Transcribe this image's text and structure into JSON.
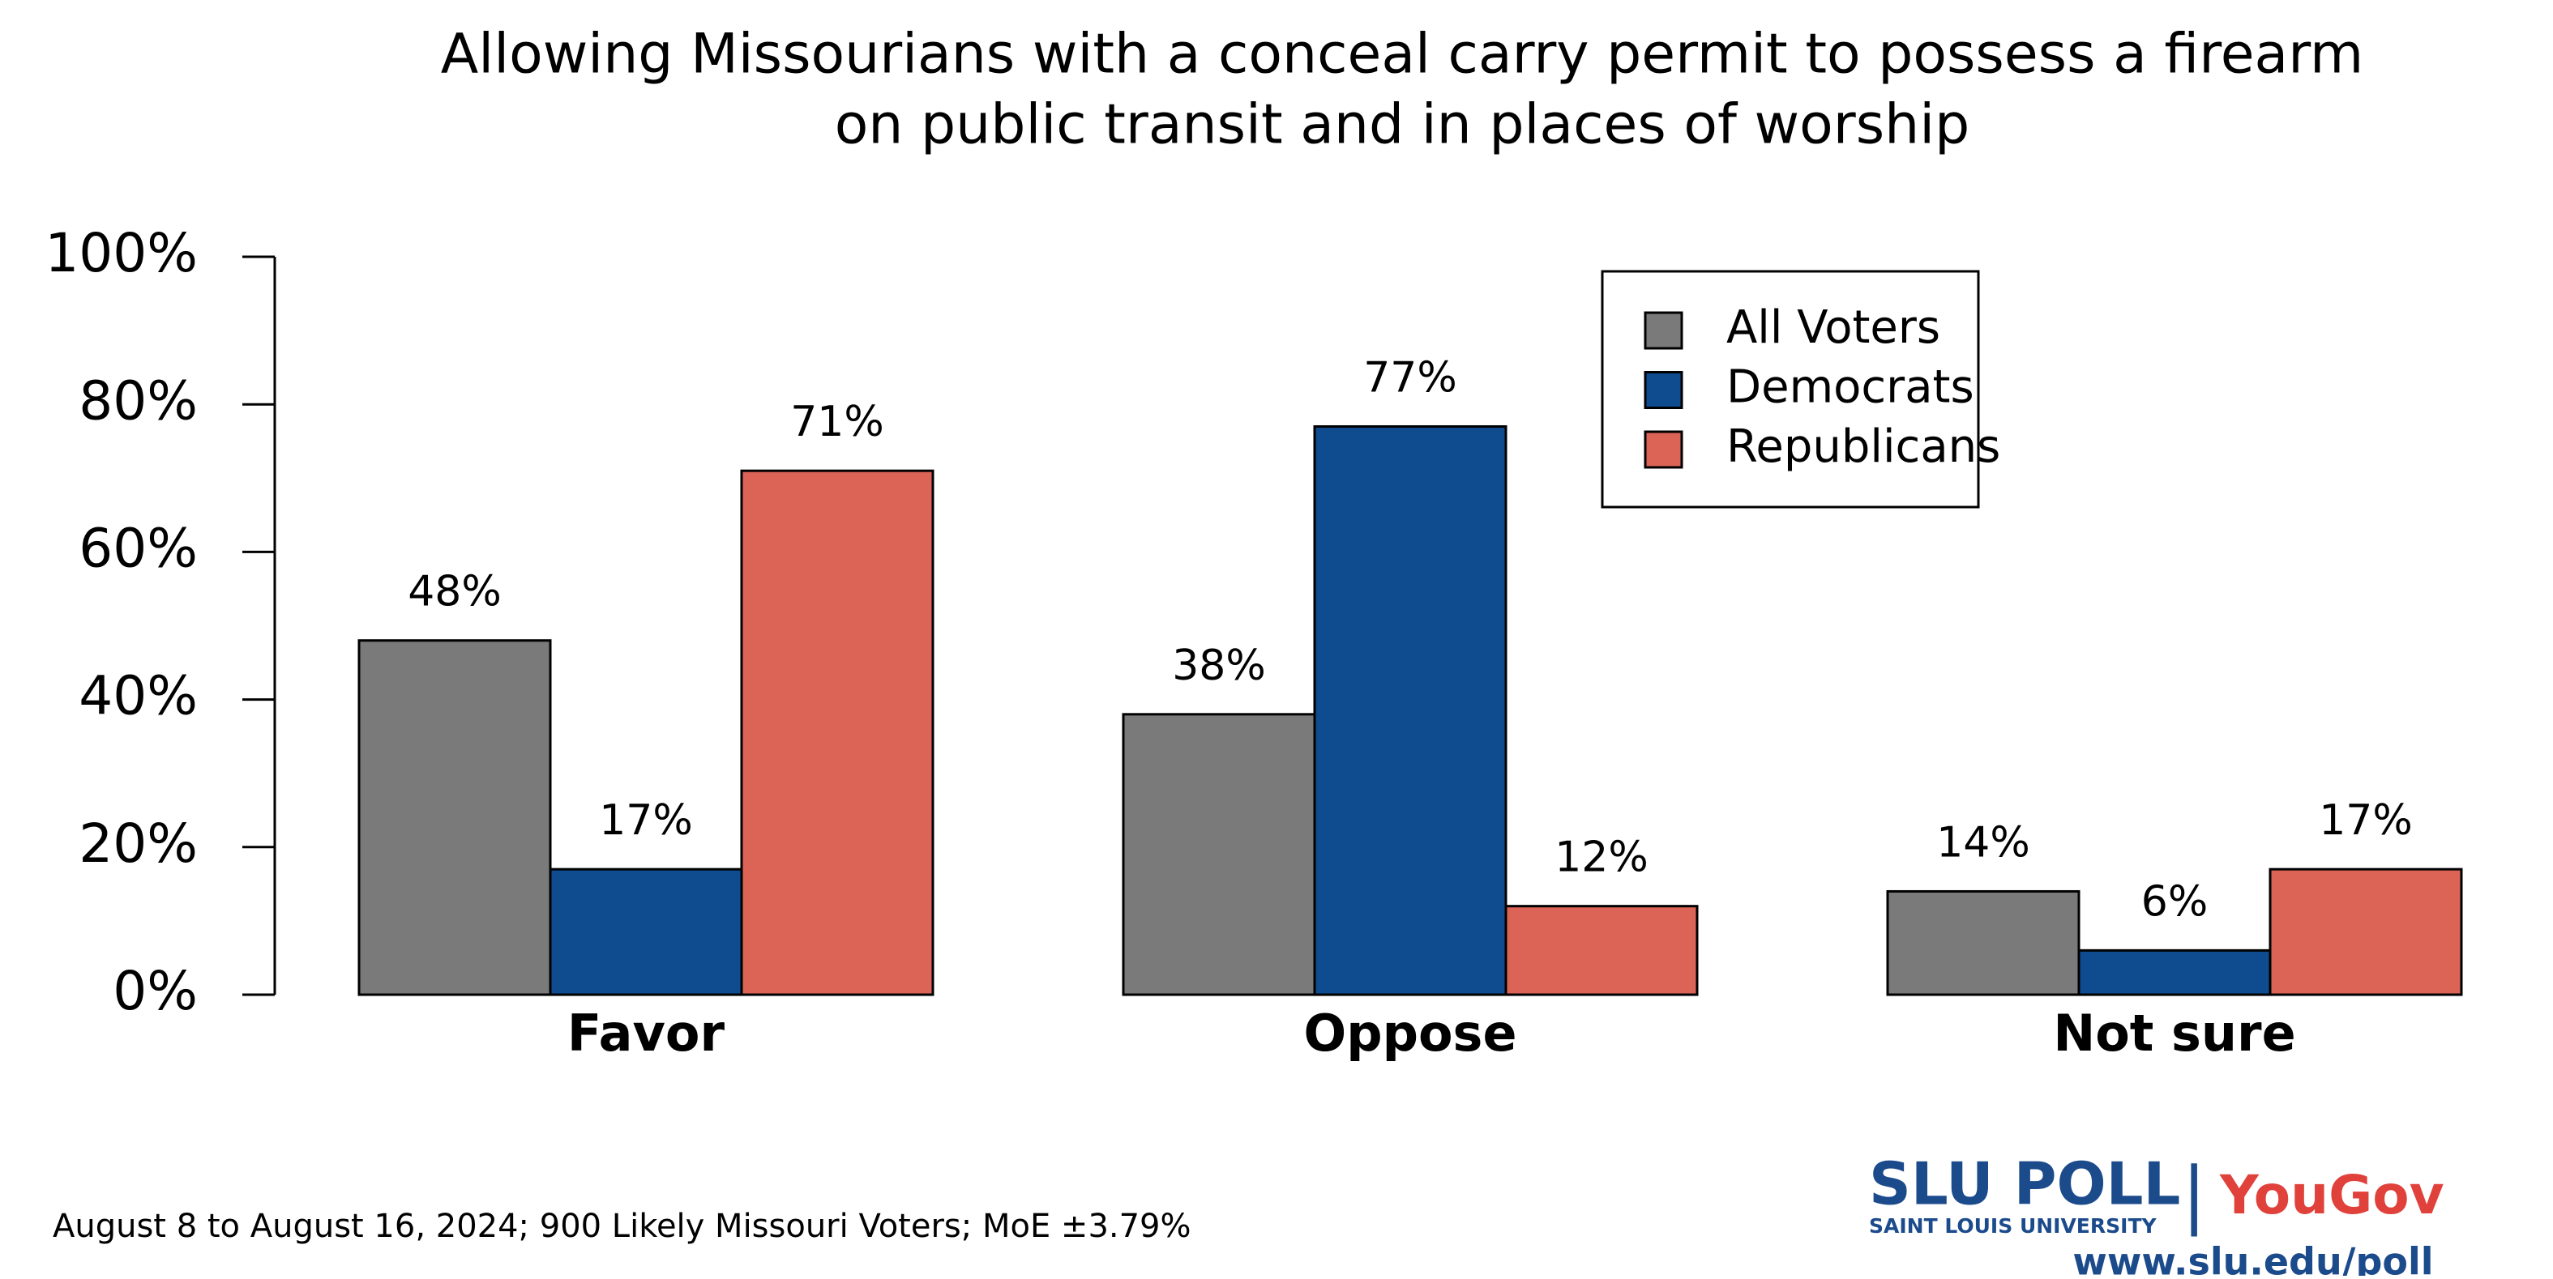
{
  "chart_data": {
    "type": "bar",
    "title": "Allowing Missourians with a conceal carry permit to possess a firearm",
    "subtitle": "on public transit and in places of worship",
    "categories": [
      "Favor",
      "Oppose",
      "Not sure"
    ],
    "series": [
      {
        "name": "All Voters",
        "color": "#7a7a7a",
        "values": [
          48,
          38,
          14
        ],
        "value_labels": [
          "48%",
          "38%",
          "14%"
        ]
      },
      {
        "name": "Democrats",
        "color": "#0f4c8f",
        "values": [
          17,
          77,
          6
        ],
        "value_labels": [
          "17%",
          "77%",
          "6%"
        ]
      },
      {
        "name": "Republicans",
        "color": "#dc6457",
        "values": [
          71,
          12,
          17
        ],
        "value_labels": [
          "71%",
          "12%",
          "17%"
        ]
      }
    ],
    "ylim": [
      0,
      100
    ],
    "yticks": [
      {
        "value": 0,
        "label": "0%"
      },
      {
        "value": 20,
        "label": "20%"
      },
      {
        "value": 40,
        "label": "40%"
      },
      {
        "value": 60,
        "label": "60%"
      },
      {
        "value": 80,
        "label": "80%"
      },
      {
        "value": 100,
        "label": "100%"
      }
    ],
    "legend": "top-right"
  },
  "footnote": "August 8 to August 16, 2024; 900 Likely Missouri Voters; MoE ±3.79%",
  "logo": {
    "name": "SLU POLL",
    "university": "SAINT LOUIS UNIVERSITY",
    "separator": "|",
    "partner": "YouGov",
    "url": "www.slu.edu/poll"
  }
}
